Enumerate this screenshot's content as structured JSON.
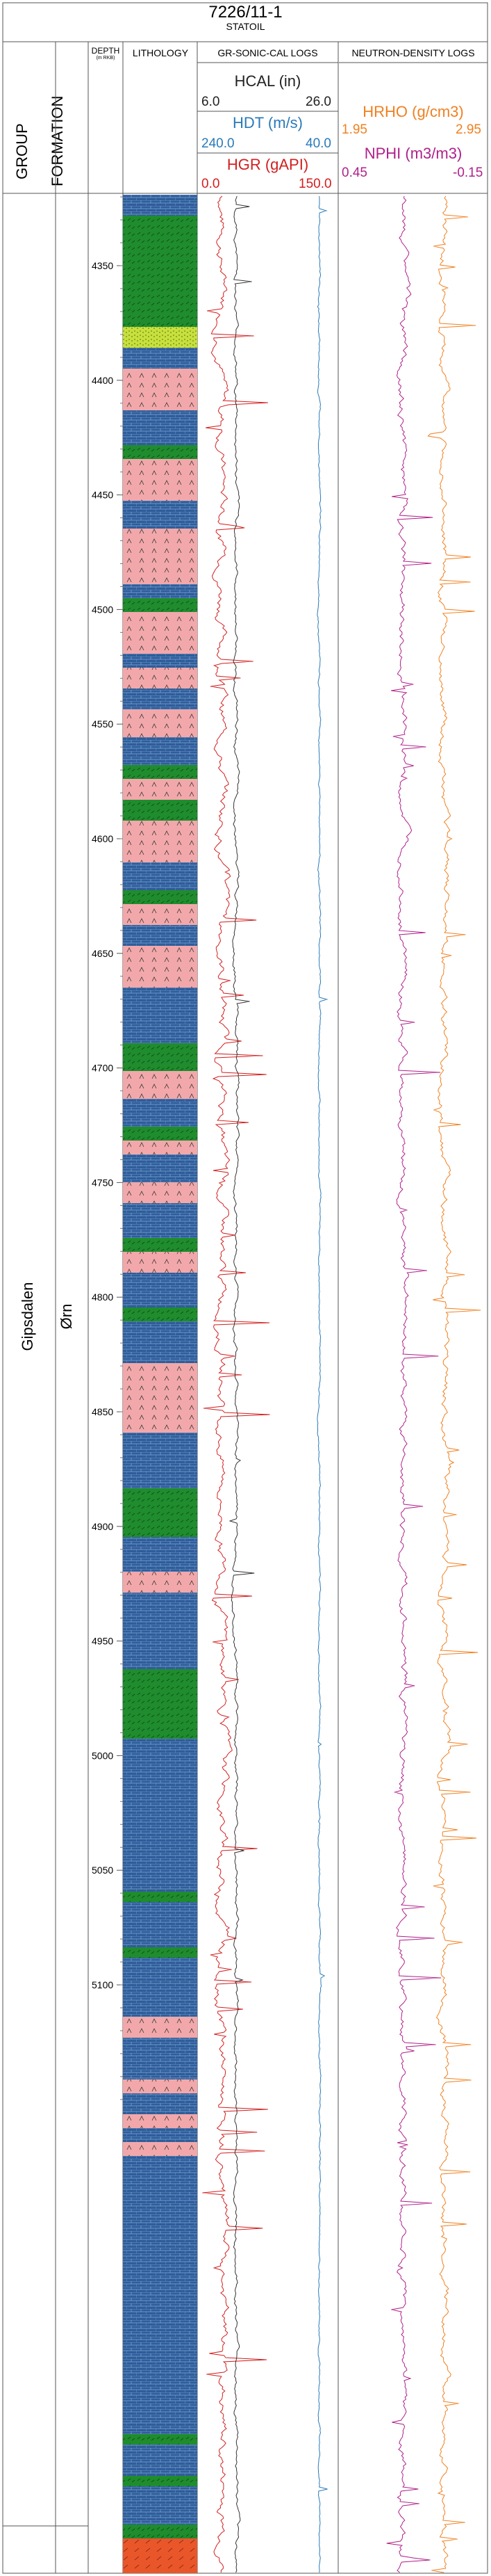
{
  "well": "7226/11-1",
  "company": "STATOIL",
  "headers": {
    "group": "GROUP",
    "formation": "FORMATION",
    "depth": "DEPTH",
    "depth_unit": "(m RKB)",
    "lithology": "LITHOLOGY",
    "gr_sonic": "GR-SONIC-CAL LOGS",
    "neutron_density": "NEUTRON-DENSITY LOGS"
  },
  "group_name": "Gipsdalen",
  "formation_name": "Ørn",
  "curves": {
    "hcal": {
      "name": "HCAL (in)",
      "min": "6.0",
      "max": "26.0",
      "color": "#333333"
    },
    "hdt": {
      "name": "HDT (m/s)",
      "min": "240.0",
      "max": "40.0",
      "color": "#2a7ab8"
    },
    "hgr": {
      "name": "HGR (gAPI)",
      "min": "0.0",
      "max": "150.0",
      "color": "#d22020"
    },
    "hrho": {
      "name": "HRHO (g/cm3)",
      "min": "1.95",
      "max": "2.95",
      "color": "#f08020"
    },
    "nphi": {
      "name": "NPHI (m3/m3)",
      "min": "0.45",
      "max": "-0.15",
      "color": "#b0208a"
    }
  },
  "depth_ticks": [
    "4350",
    "4400",
    "4450",
    "4500",
    "4550",
    "4600",
    "4650",
    "4700",
    "4750",
    "4800",
    "4850",
    "4900",
    "4950",
    "5000",
    "5050",
    "5100"
  ],
  "colors": {
    "limestone": "#2f5d9a",
    "shale": "#1f8c2e",
    "anhydrite": "#f2a8aa",
    "silt": "#c8e03c",
    "red_bed": "#e8562a"
  }
}
